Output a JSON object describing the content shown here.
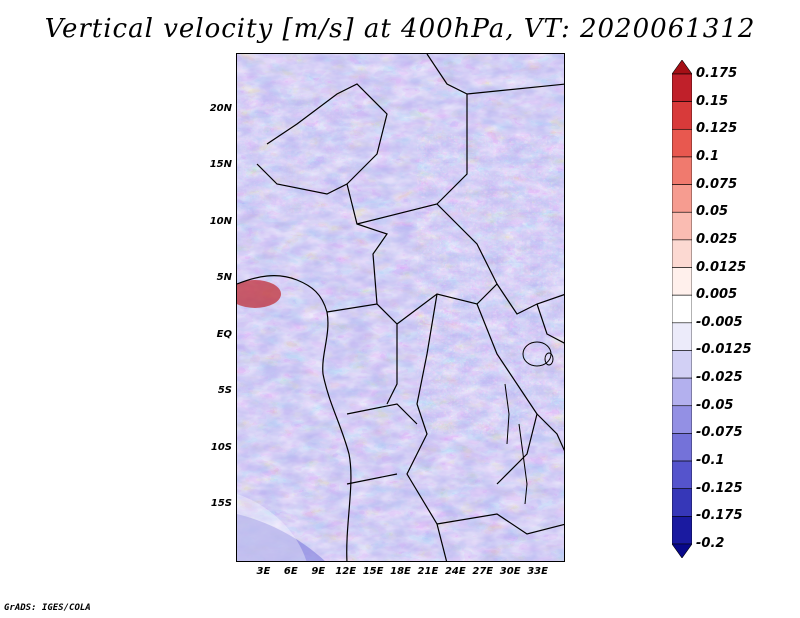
{
  "title": "Vertical velocity [m/s] at 400hPa, VT: 2020061312",
  "footer": "GrADS: IGES/COLA",
  "map": {
    "lon_range": [
      0,
      36
    ],
    "lat_range": [
      -20,
      25
    ],
    "lat_ticks": [
      "20N",
      "15N",
      "10N",
      "5N",
      "EQ",
      "5S",
      "10S",
      "15S"
    ],
    "lat_values": [
      20,
      15,
      10,
      5,
      0,
      -5,
      -10,
      -15
    ],
    "lon_ticks": [
      "3E",
      "6E",
      "9E",
      "12E",
      "15E",
      "18E",
      "21E",
      "24E",
      "27E",
      "30E",
      "33E"
    ],
    "lon_values": [
      3,
      6,
      9,
      12,
      15,
      18,
      21,
      24,
      27,
      30,
      33
    ]
  },
  "colorbar": {
    "labels": [
      "0.175",
      "0.15",
      "0.125",
      "0.1",
      "0.075",
      "0.05",
      "0.025",
      "0.0125",
      "0.005",
      "-0.005",
      "-0.0125",
      "-0.025",
      "-0.05",
      "-0.075",
      "-0.1",
      "-0.125",
      "-0.175",
      "-0.2"
    ],
    "colors": [
      "#a50f15",
      "#c0202a",
      "#d83a3a",
      "#e8584f",
      "#f07a6e",
      "#f69c90",
      "#faBcb2",
      "#fcd9d2",
      "#fff0ec",
      "#ffffff",
      "#ecebfa",
      "#d2d0f5",
      "#b3b0ee",
      "#9390e4",
      "#7472d9",
      "#5554cc",
      "#3637b8",
      "#1a1aa0",
      "#08088a"
    ]
  }
}
